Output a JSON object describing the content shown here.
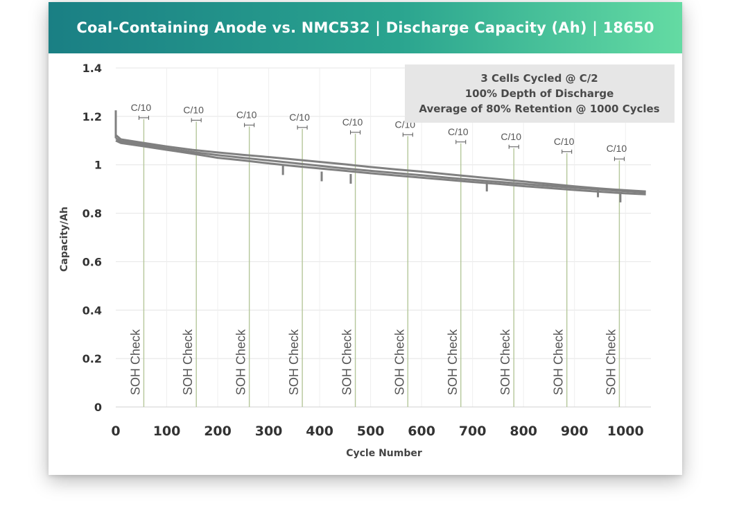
{
  "chart_data": {
    "type": "line",
    "title": "Coal-Containing Anode vs. NMC532 | Discharge Capacity (Ah) | 18650",
    "xlabel": "Cycle Number",
    "ylabel": "Capacity/Ah",
    "xlim": [
      0,
      1050
    ],
    "ylim": [
      0,
      1.4
    ],
    "x_ticks": [
      0,
      100,
      200,
      300,
      400,
      500,
      600,
      700,
      800,
      900,
      1000
    ],
    "y_ticks": [
      {
        "v": 0,
        "label": "0"
      },
      {
        "v": 0.2,
        "label": "0.2"
      },
      {
        "v": 0.4,
        "label": "0.4"
      },
      {
        "v": 0.6,
        "label": "0.6"
      },
      {
        "v": 0.8,
        "label": "0.8"
      },
      {
        "v": 1.0,
        "label": "1"
      },
      {
        "v": 1.2,
        "label": "1.2"
      },
      {
        "v": 1.4,
        "label": "1.4"
      }
    ],
    "grid": true,
    "annotation_box": {
      "lines": [
        "3 Cells Cycled @ C/2",
        "100% Depth of Discharge",
        "Average of 80% Retention @ 1000 Cycles"
      ],
      "placement": "top-right"
    },
    "soh_check": {
      "label": "SOH Check",
      "rate_label": "C/10",
      "cycles": [
        55,
        158,
        262,
        366,
        470,
        573,
        677,
        781,
        885,
        988
      ],
      "rate_label_y": [
        1.2,
        1.19,
        1.17,
        1.16,
        1.14,
        1.13,
        1.1,
        1.08,
        1.06,
        1.03
      ]
    },
    "series": [
      {
        "x": [
          0,
          10,
          50,
          100,
          150,
          200,
          250,
          300,
          350,
          400,
          450,
          500,
          550,
          600,
          650,
          700,
          750,
          800,
          850,
          900,
          950,
          1000,
          1040
        ],
        "y": [
          1.123,
          1.105,
          1.092,
          1.076,
          1.062,
          1.051,
          1.041,
          1.032,
          1.022,
          1.012,
          1.002,
          0.991,
          0.981,
          0.972,
          0.961,
          0.951,
          0.941,
          0.931,
          0.921,
          0.911,
          0.902,
          0.895,
          0.89
        ]
      },
      {
        "x": [
          0,
          10,
          50,
          100,
          150,
          200,
          250,
          300,
          350,
          400,
          450,
          500,
          550,
          600,
          650,
          700,
          750,
          800,
          850,
          900,
          950,
          1000,
          1040
        ],
        "y": [
          1.11,
          1.097,
          1.085,
          1.068,
          1.053,
          1.04,
          1.029,
          1.018,
          1.007,
          0.996,
          0.985,
          0.975,
          0.966,
          0.957,
          0.947,
          0.938,
          0.93,
          0.921,
          0.913,
          0.905,
          0.898,
          0.891,
          0.886
        ]
      },
      {
        "x": [
          0,
          10,
          50,
          100,
          150,
          200,
          250,
          300,
          350,
          400,
          450,
          500,
          550,
          600,
          650,
          700,
          750,
          800,
          850,
          900,
          950,
          1000,
          1040
        ],
        "y": [
          1.1,
          1.09,
          1.078,
          1.062,
          1.046,
          1.029,
          1.018,
          1.006,
          0.995,
          0.985,
          0.975,
          0.965,
          0.956,
          0.947,
          0.938,
          0.929,
          0.921,
          0.912,
          0.904,
          0.896,
          0.889,
          0.882,
          0.878
        ]
      }
    ],
    "dips": [
      {
        "x": 328,
        "y": 0.958
      },
      {
        "x": 404,
        "y": 0.932
      },
      {
        "x": 461,
        "y": 0.922
      },
      {
        "x": 728,
        "y": 0.89
      },
      {
        "x": 946,
        "y": 0.866
      },
      {
        "x": 990,
        "y": 0.845
      }
    ],
    "colors": {
      "series": "#808080",
      "soh_line": "#b5c79a",
      "grid": "#e4e4e4",
      "annotation_bg": "#e6e6e6",
      "banner_start": "#1a7f84",
      "banner_end": "#64dba3"
    }
  }
}
